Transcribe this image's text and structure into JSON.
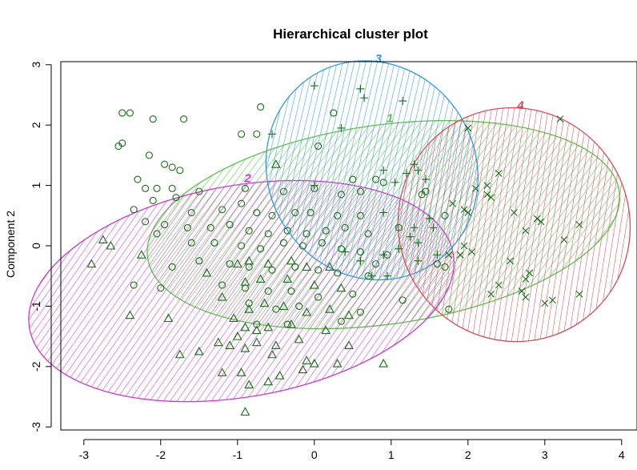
{
  "chart_data": {
    "type": "scatter",
    "title": "Hierarchical cluster plot",
    "xlabel": "",
    "ylabel": "Component 2",
    "xlim": [
      -3.3,
      4.2
    ],
    "ylim": [
      -3.05,
      3.05
    ],
    "x_ticks": [
      -3,
      -2,
      -1,
      0,
      1,
      2,
      3,
      4
    ],
    "y_ticks": [
      -3,
      -2,
      -1,
      0,
      1,
      2,
      3
    ],
    "x_tick_labels": [
      "-3",
      "-2",
      "-1",
      "0",
      "1",
      "2",
      "3",
      "4"
    ],
    "y_tick_labels": [
      "-3",
      "-2",
      "-1",
      "0",
      "1",
      "2",
      "3"
    ],
    "grid": false,
    "point_color": "#1a6b1a",
    "clusters": [
      {
        "label": "1",
        "color": "#5fbf4f",
        "marker": "circle",
        "ellipse": {
          "cx": 0.9,
          "cy": 0.35,
          "rx": 3.1,
          "ry": 1.65,
          "angle_deg": -8
        },
        "points": [
          [
            -2.5,
            2.2
          ],
          [
            -2.4,
            2.2
          ],
          [
            -2.1,
            2.1
          ],
          [
            -1.7,
            2.1
          ],
          [
            -0.7,
            2.3
          ],
          [
            0.25,
            2.2
          ],
          [
            -2.5,
            1.7
          ],
          [
            -2.55,
            1.65
          ],
          [
            -0.95,
            1.85
          ],
          [
            -0.75,
            1.85
          ],
          [
            0.05,
            1.65
          ],
          [
            -2.15,
            1.5
          ],
          [
            -1.95,
            1.35
          ],
          [
            -1.85,
            1.3
          ],
          [
            -1.75,
            1.25
          ],
          [
            -2.3,
            1.1
          ],
          [
            -2.2,
            0.95
          ],
          [
            -2.05,
            0.95
          ],
          [
            -1.85,
            0.95
          ],
          [
            -1.5,
            0.9
          ],
          [
            -0.9,
            0.95
          ],
          [
            -0.4,
            0.9
          ],
          [
            0.0,
            0.95
          ],
          [
            0.5,
            1.1
          ],
          [
            0.8,
            1.1
          ],
          [
            0.9,
            1.05
          ],
          [
            0.6,
            0.9
          ],
          [
            0.35,
            0.85
          ],
          [
            -2.35,
            0.6
          ],
          [
            -2.1,
            0.75
          ],
          [
            -1.8,
            0.8
          ],
          [
            -1.6,
            0.55
          ],
          [
            -1.2,
            0.6
          ],
          [
            -0.95,
            0.7
          ],
          [
            -0.75,
            0.55
          ],
          [
            -0.55,
            0.5
          ],
          [
            -0.25,
            0.55
          ],
          [
            -0.05,
            0.55
          ],
          [
            0.3,
            0.5
          ],
          [
            0.6,
            0.5
          ],
          [
            1.1,
            0.3
          ],
          [
            1.4,
            0.85
          ],
          [
            1.45,
            0.9
          ],
          [
            1.7,
            0.5
          ],
          [
            -2.2,
            0.4
          ],
          [
            -1.95,
            0.35
          ],
          [
            -1.65,
            0.3
          ],
          [
            -1.35,
            0.3
          ],
          [
            -1.1,
            0.35
          ],
          [
            -0.85,
            0.25
          ],
          [
            -0.6,
            0.2
          ],
          [
            -0.35,
            0.25
          ],
          [
            -0.1,
            0.2
          ],
          [
            0.15,
            0.25
          ],
          [
            0.4,
            0.3
          ],
          [
            0.7,
            0.2
          ],
          [
            -2.05,
            0.2
          ],
          [
            -1.6,
            0.05
          ],
          [
            -1.3,
            0.05
          ],
          [
            -0.95,
            0.0
          ],
          [
            -0.7,
            -0.05
          ],
          [
            -0.4,
            0.05
          ],
          [
            -0.15,
            0.0
          ],
          [
            0.1,
            0.05
          ],
          [
            0.35,
            -0.05
          ],
          [
            0.6,
            -0.1
          ],
          [
            0.95,
            -0.15
          ],
          [
            1.6,
            -0.3
          ],
          [
            1.7,
            -0.35
          ],
          [
            -1.85,
            -0.35
          ],
          [
            -1.5,
            -0.25
          ],
          [
            -1.1,
            -0.3
          ],
          [
            -0.85,
            -0.35
          ],
          [
            -0.55,
            -0.4
          ],
          [
            -0.25,
            -0.35
          ],
          [
            0.05,
            -0.4
          ],
          [
            0.3,
            -0.45
          ],
          [
            0.7,
            -0.5
          ],
          [
            0.8,
            -0.3
          ],
          [
            -2.35,
            -0.65
          ],
          [
            -2.0,
            -0.7
          ],
          [
            -1.2,
            -0.65
          ],
          [
            -0.9,
            -0.7
          ],
          [
            -0.6,
            -0.75
          ],
          [
            -0.3,
            -0.75
          ],
          [
            0.05,
            -0.85
          ],
          [
            0.5,
            -0.8
          ],
          [
            1.15,
            -0.9
          ],
          [
            -0.85,
            -0.95
          ],
          [
            -0.5,
            -1.05
          ],
          [
            -0.2,
            -1.0
          ],
          [
            0.35,
            -1.25
          ],
          [
            0.6,
            -1.1
          ],
          [
            1.75,
            -1.05
          ],
          [
            -0.75,
            -1.3
          ],
          [
            -0.35,
            -1.3
          ]
        ]
      },
      {
        "label": "2",
        "color": "#c83cc8",
        "marker": "triangle",
        "ellipse": {
          "cx": -0.95,
          "cy": -0.75,
          "rx": 2.8,
          "ry": 1.75,
          "angle_deg": -10
        },
        "points": [
          [
            -0.5,
            1.35
          ],
          [
            -2.75,
            0.1
          ],
          [
            -2.65,
            0.0
          ],
          [
            -2.9,
            -0.3
          ],
          [
            -2.25,
            -0.15
          ],
          [
            -1.0,
            -0.3
          ],
          [
            -0.85,
            -0.25
          ],
          [
            -0.6,
            -0.3
          ],
          [
            -0.3,
            -0.25
          ],
          [
            -0.1,
            -0.35
          ],
          [
            0.2,
            -0.35
          ],
          [
            -1.4,
            -0.45
          ],
          [
            -0.9,
            -0.6
          ],
          [
            -0.7,
            -0.55
          ],
          [
            -0.35,
            -0.55
          ],
          [
            0.0,
            -0.65
          ],
          [
            0.35,
            -0.7
          ],
          [
            -1.2,
            -0.85
          ],
          [
            -0.85,
            -1.05
          ],
          [
            -0.65,
            -0.95
          ],
          [
            -0.4,
            -1.0
          ],
          [
            -0.1,
            -1.1
          ],
          [
            0.2,
            -1.05
          ],
          [
            0.45,
            -1.15
          ],
          [
            -2.4,
            -1.15
          ],
          [
            -1.9,
            -1.2
          ],
          [
            -1.05,
            -1.2
          ],
          [
            -0.9,
            -1.35
          ],
          [
            -0.75,
            -1.4
          ],
          [
            -0.6,
            -1.35
          ],
          [
            -0.3,
            -1.3
          ],
          [
            -1.0,
            -1.5
          ],
          [
            -0.75,
            -1.6
          ],
          [
            -0.5,
            -1.65
          ],
          [
            -0.2,
            -1.55
          ],
          [
            0.15,
            -1.4
          ],
          [
            0.45,
            -1.65
          ],
          [
            -1.25,
            -1.6
          ],
          [
            -1.1,
            -1.65
          ],
          [
            -1.5,
            -1.75
          ],
          [
            -1.75,
            -1.8
          ],
          [
            -0.9,
            -1.7
          ],
          [
            -0.55,
            -1.8
          ],
          [
            -0.1,
            -1.9
          ],
          [
            0.0,
            -1.95
          ],
          [
            -1.2,
            -2.1
          ],
          [
            -0.95,
            -2.1
          ],
          [
            -0.85,
            -2.3
          ],
          [
            -0.45,
            -2.15
          ],
          [
            -0.15,
            -2.05
          ],
          [
            0.3,
            -1.95
          ],
          [
            0.9,
            -1.95
          ],
          [
            -0.6,
            -2.25
          ],
          [
            -0.9,
            -2.75
          ]
        ]
      },
      {
        "label": "3",
        "color": "#3399dd",
        "marker": "plus",
        "ellipse": {
          "cx": 0.75,
          "cy": 1.25,
          "rx": 1.35,
          "ry": 1.85,
          "angle_deg": -32
        },
        "points": [
          [
            0.0,
            2.65
          ],
          [
            0.6,
            2.6
          ],
          [
            0.65,
            2.45
          ],
          [
            1.15,
            2.4
          ],
          [
            0.35,
            1.95
          ],
          [
            -0.55,
            1.85
          ],
          [
            1.3,
            1.35
          ],
          [
            0.9,
            1.25
          ],
          [
            1.2,
            1.2
          ],
          [
            1.35,
            1.25
          ],
          [
            1.05,
            1.05
          ],
          [
            1.45,
            1.1
          ],
          [
            0.0,
            1.0
          ],
          [
            0.9,
            0.55
          ],
          [
            1.3,
            0.3
          ],
          [
            1.25,
            0.15
          ],
          [
            1.35,
            0.05
          ],
          [
            0.4,
            -0.1
          ],
          [
            1.1,
            -0.05
          ],
          [
            0.6,
            -0.25
          ],
          [
            0.9,
            -0.15
          ],
          [
            1.35,
            -0.25
          ],
          [
            1.6,
            -0.15
          ],
          [
            0.75,
            -0.5
          ],
          [
            0.95,
            -0.5
          ],
          [
            1.5,
            0.45
          ],
          [
            1.55,
            0.3
          ]
        ]
      },
      {
        "label": "4",
        "color": "#d0505a",
        "marker": "x",
        "ellipse": {
          "cx": 2.6,
          "cy": 0.35,
          "rx": 1.5,
          "ry": 1.95,
          "angle_deg": -36
        },
        "points": [
          [
            3.2,
            2.1
          ],
          [
            2.0,
            1.95
          ],
          [
            2.25,
            1.0
          ],
          [
            2.4,
            1.2
          ],
          [
            2.1,
            0.95
          ],
          [
            2.25,
            0.85
          ],
          [
            2.3,
            0.8
          ],
          [
            1.8,
            0.7
          ],
          [
            2.0,
            0.55
          ],
          [
            1.95,
            0.6
          ],
          [
            2.6,
            0.55
          ],
          [
            2.9,
            0.45
          ],
          [
            2.95,
            0.4
          ],
          [
            3.45,
            0.35
          ],
          [
            2.75,
            0.25
          ],
          [
            1.95,
            0.0
          ],
          [
            2.05,
            -0.1
          ],
          [
            3.25,
            0.1
          ],
          [
            1.75,
            -0.15
          ],
          [
            1.9,
            -0.15
          ],
          [
            2.55,
            -0.25
          ],
          [
            2.8,
            -0.45
          ],
          [
            2.75,
            -0.55
          ],
          [
            2.4,
            -0.65
          ],
          [
            2.3,
            -0.8
          ],
          [
            2.7,
            -0.75
          ],
          [
            2.75,
            -0.85
          ],
          [
            3.0,
            -0.95
          ],
          [
            3.1,
            -0.9
          ],
          [
            3.45,
            -0.8
          ]
        ]
      }
    ]
  }
}
